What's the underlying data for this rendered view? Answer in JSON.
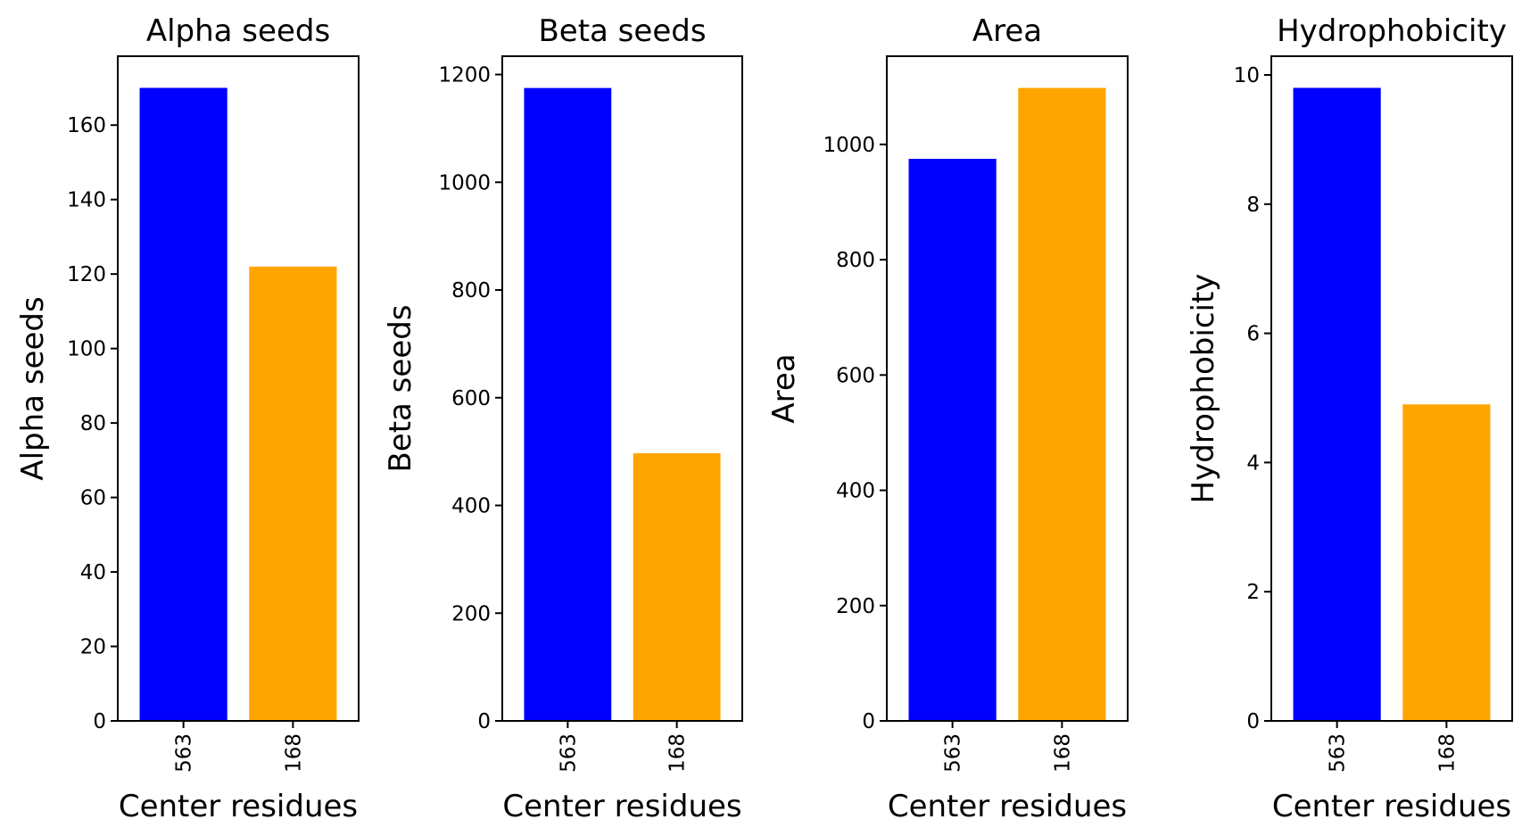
{
  "chart_data": [
    {
      "type": "bar",
      "title": "Alpha seeds",
      "xlabel": "Center residues",
      "ylabel": "Alpha seeds",
      "categories": [
        "563",
        "168"
      ],
      "values": [
        170,
        122
      ],
      "colors": [
        "#0000ff",
        "#ffa500"
      ],
      "ylim": [
        0,
        178.5
      ],
      "yticks": [
        0,
        20,
        40,
        60,
        80,
        100,
        120,
        140,
        160
      ],
      "xtick_rotation": "vertical",
      "grid": false,
      "legend": "none"
    },
    {
      "type": "bar",
      "title": "Beta seeds",
      "xlabel": "Center residues",
      "ylabel": "Beta seeds",
      "categories": [
        "563",
        "168"
      ],
      "values": [
        1175,
        497
      ],
      "colors": [
        "#0000ff",
        "#ffa500"
      ],
      "ylim": [
        0,
        1234
      ],
      "yticks": [
        0,
        200,
        400,
        600,
        800,
        1000,
        1200
      ],
      "xtick_rotation": "vertical",
      "grid": false,
      "legend": "none"
    },
    {
      "type": "bar",
      "title": "Area",
      "xlabel": "Center residues",
      "ylabel": "Area",
      "categories": [
        "563",
        "168"
      ],
      "values": [
        975,
        1098
      ],
      "colors": [
        "#0000ff",
        "#ffa500"
      ],
      "ylim": [
        0,
        1153
      ],
      "yticks": [
        0,
        200,
        400,
        600,
        800,
        1000
      ],
      "xtick_rotation": "vertical",
      "grid": false,
      "legend": "none"
    },
    {
      "type": "bar",
      "title": "Hydrophobicity",
      "xlabel": "Center residues",
      "ylabel": "Hydrophobicity",
      "categories": [
        "563",
        "168"
      ],
      "values": [
        9.8,
        4.9
      ],
      "colors": [
        "#0000ff",
        "#ffa500"
      ],
      "ylim": [
        0,
        10.29
      ],
      "yticks": [
        0,
        2,
        4,
        6,
        8,
        10
      ],
      "xtick_rotation": "vertical",
      "grid": false,
      "legend": "none"
    }
  ]
}
